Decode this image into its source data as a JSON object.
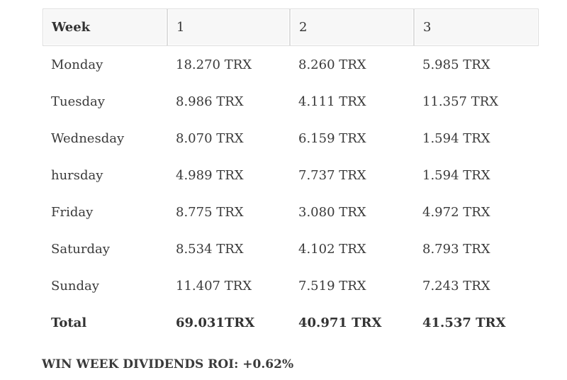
{
  "table": {
    "headers": [
      "Week",
      "1",
      "2",
      "3"
    ],
    "rows": [
      [
        "Monday",
        "18.270 TRX",
        "8.260 TRX",
        "5.985 TRX"
      ],
      [
        "Tuesday",
        "8.986 TRX",
        "4.111 TRX",
        "11.357 TRX"
      ],
      [
        "Wednesday",
        "8.070 TRX",
        "6.159 TRX",
        "1.594 TRX"
      ],
      [
        "hursday",
        "4.989 TRX",
        "7.737 TRX",
        "1.594 TRX"
      ],
      [
        "Friday",
        "8.775 TRX",
        "3.080 TRX",
        "4.972 TRX"
      ],
      [
        "Saturday",
        "8.534 TRX",
        "4.102 TRX",
        "8.793 TRX"
      ],
      [
        "Sunday",
        "11.407 TRX",
        "7.519 TRX",
        "7.243 TRX"
      ]
    ],
    "total": [
      "Total",
      "69.031TRX",
      "40.971 TRX",
      "41.537 TRX"
    ]
  },
  "footer": {
    "roi_text": "WIN WEEK DIVIDENDS ROI: +0.62%"
  }
}
